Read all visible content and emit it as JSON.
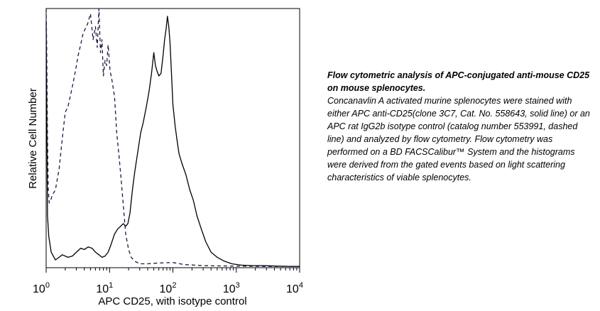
{
  "chart_data": {
    "type": "line",
    "title": "",
    "xlabel": "APC CD25, with isotype control",
    "ylabel": "Relative Cell Number",
    "xscale": "log",
    "xlim": [
      1,
      10000
    ],
    "ylim": [
      0,
      1
    ],
    "x_ticks": [
      1,
      10,
      100,
      1000,
      10000
    ],
    "x_tick_labels": [
      {
        "base": "10",
        "exp": "0"
      },
      {
        "base": "10",
        "exp": "1"
      },
      {
        "base": "10",
        "exp": "2"
      },
      {
        "base": "10",
        "exp": "3"
      },
      {
        "base": "10",
        "exp": "4"
      }
    ],
    "grid": false,
    "legend": "none",
    "series": [
      {
        "style": "solid",
        "color": "#000000",
        "x": [
          1.0,
          1.05,
          1.1,
          1.2,
          1.4,
          1.6,
          1.8,
          2.2,
          2.6,
          3.0,
          3.5,
          4.0,
          4.6,
          5.3,
          6.0,
          6.8,
          7.6,
          8.5,
          9.5,
          10.6,
          12.0,
          13.5,
          15.0,
          16.5,
          18.0,
          19.5,
          21,
          23,
          25,
          28,
          31,
          34,
          38,
          42,
          46,
          50,
          53,
          56,
          60,
          65,
          70,
          74,
          78,
          82,
          86,
          90,
          95,
          100,
          108,
          115,
          125,
          140,
          160,
          185,
          210,
          240,
          280,
          330,
          400,
          500,
          650,
          850,
          1200,
          1800,
          2800,
          4500,
          7000,
          10000
        ],
        "y": [
          0.95,
          0.2,
          0.12,
          0.06,
          0.03,
          0.04,
          0.05,
          0.04,
          0.045,
          0.06,
          0.075,
          0.07,
          0.08,
          0.075,
          0.06,
          0.05,
          0.04,
          0.045,
          0.06,
          0.09,
          0.13,
          0.15,
          0.16,
          0.17,
          0.16,
          0.17,
          0.21,
          0.3,
          0.37,
          0.45,
          0.52,
          0.56,
          0.62,
          0.68,
          0.75,
          0.83,
          0.78,
          0.76,
          0.74,
          0.75,
          0.82,
          0.88,
          0.92,
          0.97,
          0.93,
          0.87,
          0.75,
          0.63,
          0.55,
          0.5,
          0.44,
          0.4,
          0.36,
          0.3,
          0.26,
          0.2,
          0.15,
          0.1,
          0.06,
          0.04,
          0.025,
          0.015,
          0.01,
          0.008,
          0.008,
          0.006,
          0.005,
          0.005
        ]
      },
      {
        "style": "dashed",
        "color": "#1a1a40",
        "x": [
          1.0,
          1.02,
          1.05,
          1.08,
          1.12,
          1.18,
          1.25,
          1.4,
          1.6,
          1.8,
          2.0,
          2.2,
          2.4,
          2.6,
          2.9,
          3.2,
          3.5,
          3.8,
          4.1,
          4.5,
          5.0,
          5.5,
          6.0,
          6.4,
          6.8,
          7.2,
          7.6,
          8.0,
          8.5,
          9.0,
          9.5,
          10.2,
          11.0,
          12.0,
          13.0,
          14.0,
          15.0,
          16.5,
          18.0,
          20,
          22,
          25,
          30,
          40,
          60,
          100,
          150,
          300,
          1000,
          3000,
          10000
        ],
        "y": [
          1.0,
          0.85,
          0.5,
          0.3,
          0.25,
          0.26,
          0.28,
          0.3,
          0.38,
          0.5,
          0.6,
          0.62,
          0.66,
          0.7,
          0.76,
          0.82,
          0.86,
          0.9,
          0.92,
          0.94,
          0.98,
          0.88,
          0.93,
          0.85,
          1.0,
          0.83,
          0.88,
          0.74,
          0.8,
          0.78,
          0.86,
          0.76,
          0.72,
          0.66,
          0.52,
          0.44,
          0.36,
          0.24,
          0.13,
          0.07,
          0.04,
          0.025,
          0.015,
          0.015,
          0.018,
          0.02,
          0.012,
          0.008,
          0.006,
          0.005,
          0.005
        ]
      }
    ]
  },
  "caption": {
    "title": "Flow cytometric analysis of APC-conjugated anti-mouse CD25 on mouse splenocytes.",
    "body": "Concanavlin A activated murine splenocytes were stained with either APC anti-CD25(clone 3C7, Cat. No. 558643, solid line) or an APC rat IgG2b isotype control (catalog number 553991, dashed line) and analyzed by flow cytometry.  Flow cytometry was performed on a BD FACSCalibur™ System and the histograms were derived from the gated events based on light scattering characteristics of viable splenocytes."
  }
}
